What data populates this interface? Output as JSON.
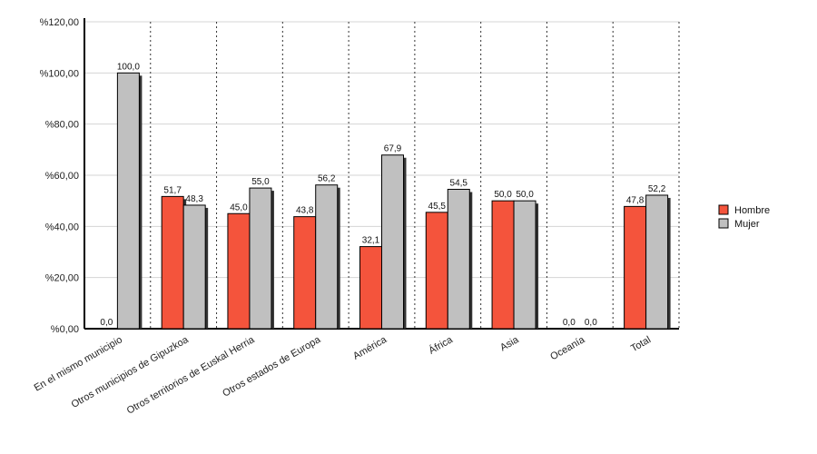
{
  "chart_data": {
    "type": "bar",
    "title": "",
    "xlabel": "",
    "ylabel": "",
    "ylim": [
      0,
      120
    ],
    "yticks": [
      "%0,00",
      "%20,00",
      "%40,00",
      "%60,00",
      "%80,00",
      "%100,00",
      "%120,00"
    ],
    "categories": [
      "En el mismo municipio",
      "Otros municipios de Gipuzkoa",
      "Otros territorios de Euskal Herria",
      "Otros estados de Europa",
      "América",
      "África",
      "Asia",
      "Oceanía",
      "Total"
    ],
    "series": [
      {
        "name": "Hombre",
        "color": "#f4543c",
        "values": [
          0.0,
          51.7,
          45.0,
          43.8,
          32.1,
          45.5,
          50.0,
          0.0,
          47.8
        ],
        "labels": [
          "0,0",
          "51,7",
          "45,0",
          "43,8",
          "32,1",
          "45,5",
          "50,0",
          "0,0",
          "47,8"
        ]
      },
      {
        "name": "Mujer",
        "color": "#c0c0c0",
        "values": [
          100.0,
          48.3,
          55.0,
          56.2,
          67.9,
          54.5,
          50.0,
          0.0,
          52.2
        ],
        "labels": [
          "100,0",
          "48,3",
          "55,0",
          "56,2",
          "67,9",
          "54,5",
          "50,0",
          "0,0",
          "52,2"
        ]
      }
    ],
    "grid": true,
    "legend_position": "right"
  }
}
